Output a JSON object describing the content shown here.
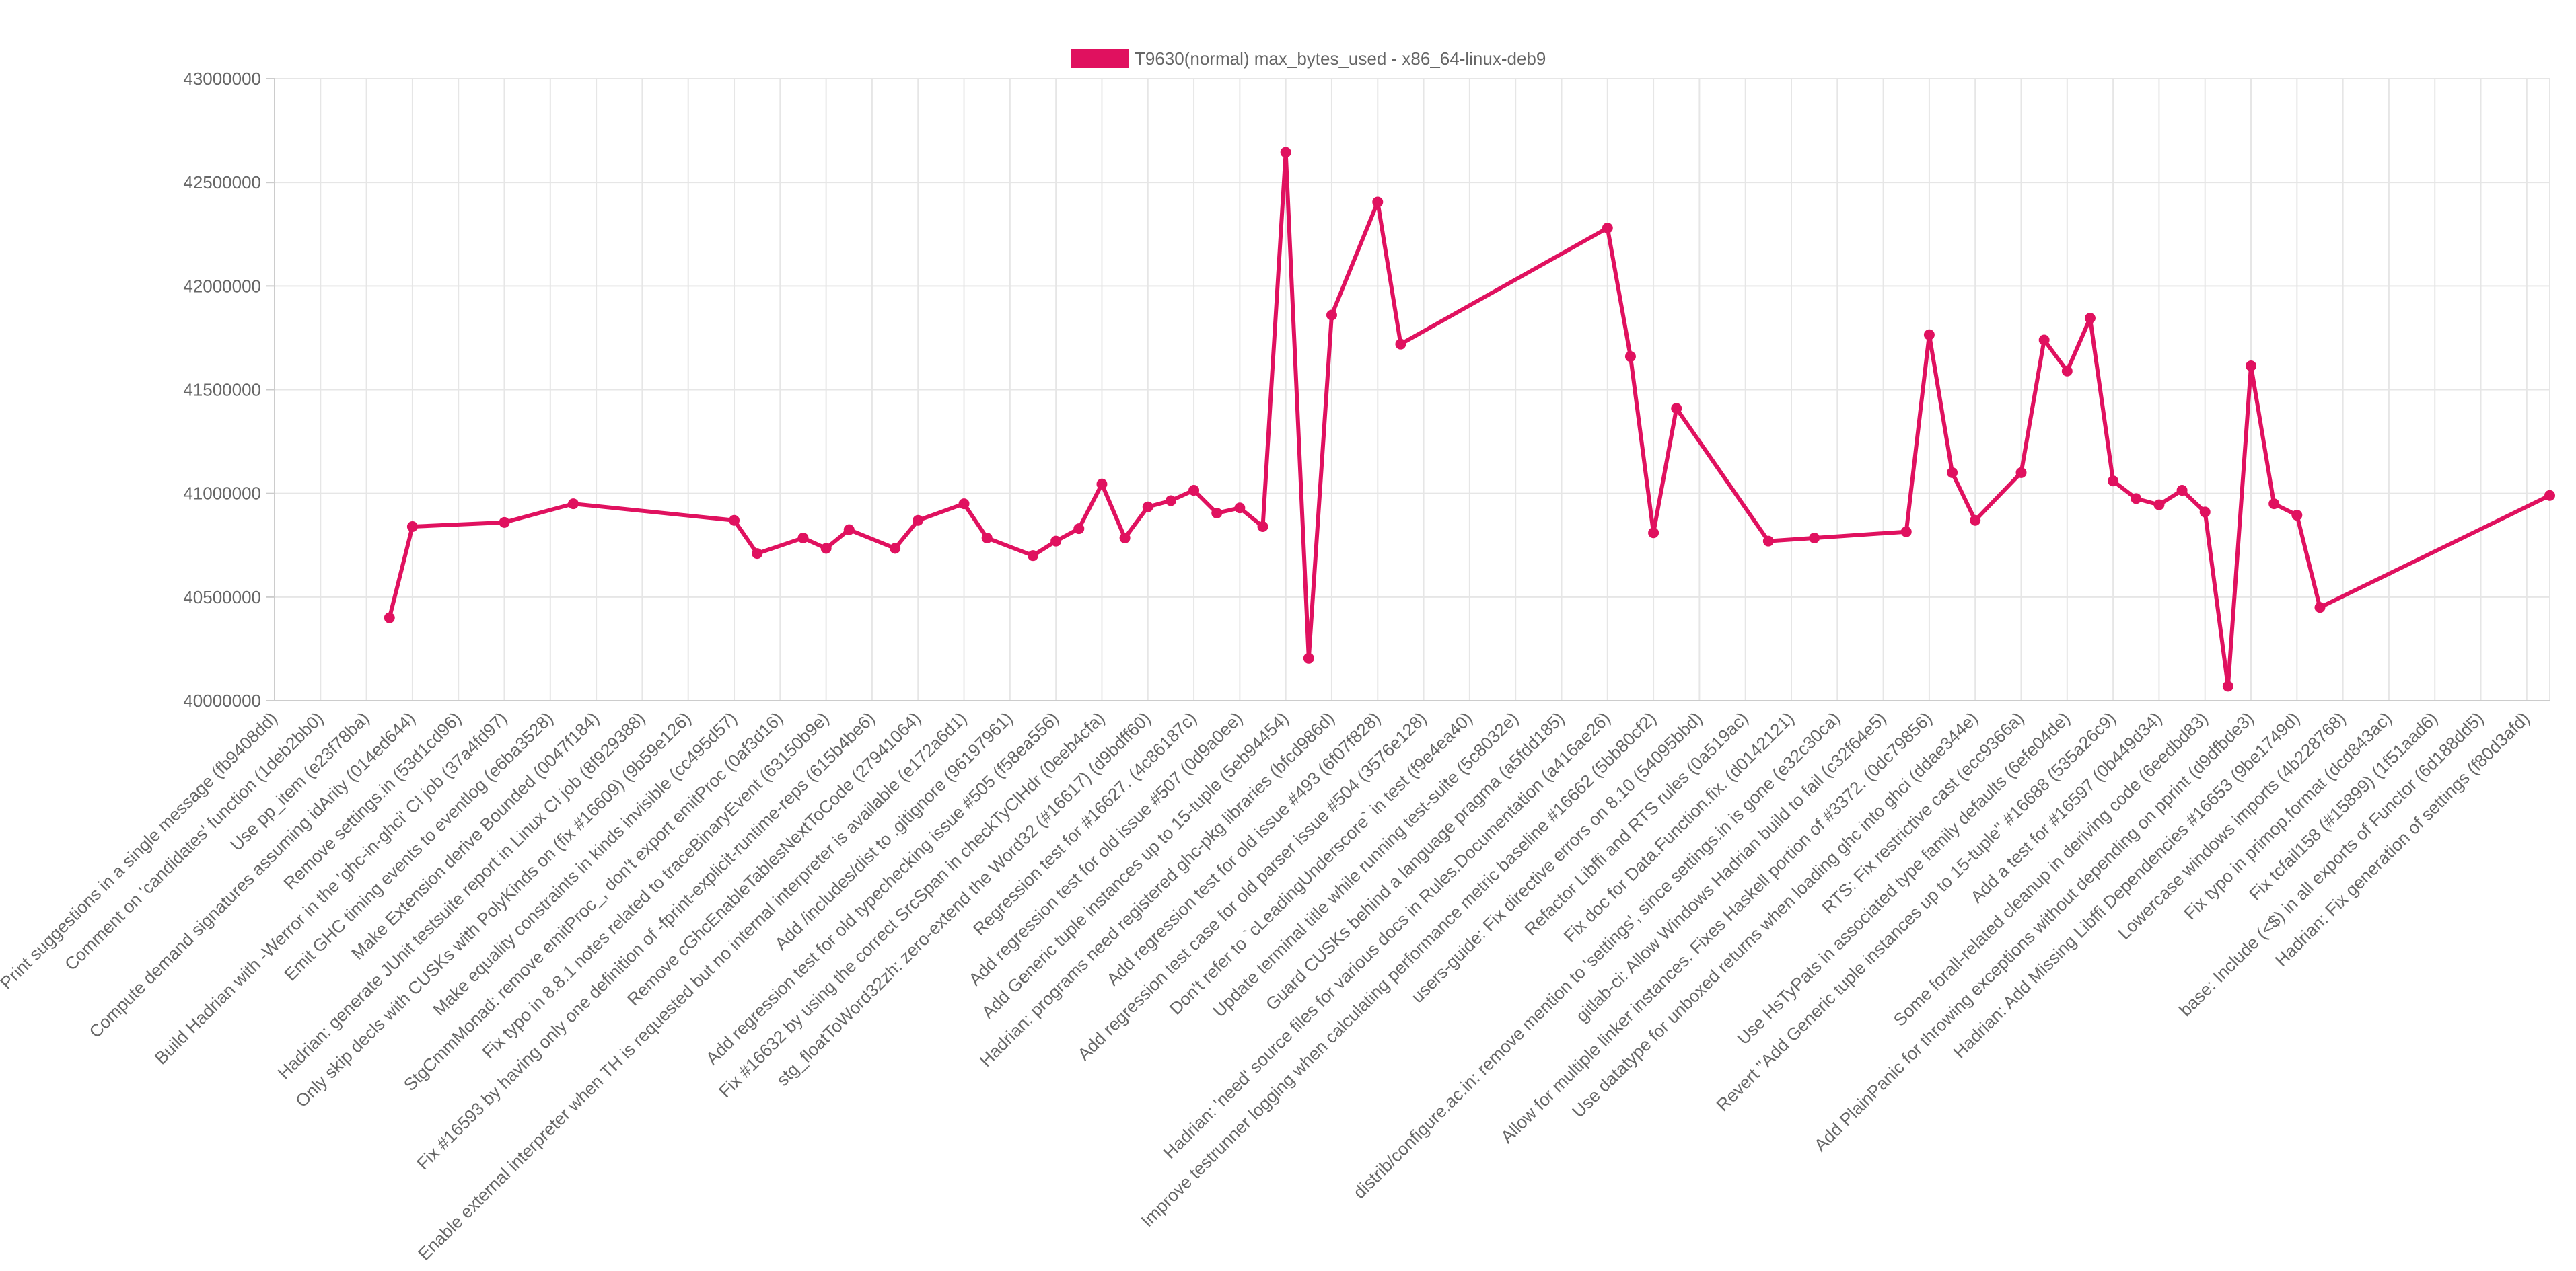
{
  "chart_data": {
    "type": "line",
    "categories": [
      "Print suggestions in a single message (fb9408dd)",
      null,
      "Comment on 'candidates' function (1deb2bb0)",
      null,
      "Use pp_item (e23f78ba)",
      null,
      "Compute demand signatures assuming idArity (014ed644)",
      null,
      "Remove settings.in (53d1cd96)",
      null,
      "Build Hadrian with -Werror in the 'ghc-in-ghci' CI job (37a4fd97)",
      null,
      "Emit GHC timing events to eventlog (e6ba3528)",
      null,
      "Make Extension derive Bounded (0047f184)",
      null,
      "Hadrian: generate JUnit testsuite report in Linux CI job (8f929388)",
      null,
      "Only skip decls with CUSKs with PolyKinds on (fix #16609) (9b59e126)",
      null,
      "Make equality constraints in kinds invisible (cc495d57)",
      null,
      "StgCmmMonad: remove emitProc_, don't export emitProc (0af3d16)",
      null,
      "Fix typo in 8.8.1 notes related to traceBinaryEvent (63150b9e)",
      null,
      "Fix #16593 by having only one definition of -fprint-explicit-runtime-reps (615b4be6)",
      null,
      "Remove cGhcEnableTablesNextToCode (27941064)",
      null,
      "Enable external interpreter when TH is requested but no internal interpreter is available (e172a6d1)",
      null,
      "Add /includes/dist to .gitignore (96197961)",
      null,
      "Add regression test for old typechecking issue #505 (f58ea556)",
      null,
      "Fix #16632 by using the correct SrcSpan in checkTyClHdr (0eeb4cfa)",
      null,
      "stg_floatToWord32zh: zero-extend the Word32 (#16617) (d9bdff60)",
      null,
      "Regression test for #16627. (4c86187c)",
      null,
      "Add regression test for old issue #507 (0d9a0ee)",
      null,
      "Add Generic tuple instances up to 15-tuple (5eb94454)",
      null,
      "Hadrian: programs need registered ghc-pkg libraries (bfcd986d)",
      null,
      "Add regression test for old issue #493 (6f07f828)",
      null,
      "Add regression test case for old parser issue #504 (3576e128)",
      null,
      "Don't refer to `cLeadingUnderscore` in test (f9e4ea40)",
      null,
      "Update terminal title while running test-suite (5c8032e)",
      null,
      "Guard CUSKs behind a language pragma (a5fdd185)",
      null,
      "Hadrian: 'need' source files for various docs in Rules.Documentation (a416ae26)",
      null,
      "Improve testrunner logging when calculating performance metric baseline #16662 (5bb80cf2)",
      null,
      "users-guide: Fix directive errors on 8.10 (54095bbd)",
      null,
      "Refactor Libffi and RTS rules (0a519ac)",
      null,
      "Fix doc for Data.Function.fix. (d0142121)",
      null,
      "distrib/configure.ac.in: remove mention to 'settings', since settings.in is gone (e32c30ca)",
      null,
      "gitlab-ci: Allow Windows Hadrian build to fail (c32f64e5)",
      null,
      "Allow for multiple linker instances. Fixes Haskell portion of #3372. (0dc79856)",
      null,
      "Use datatype for unboxed returns when loading ghc into ghci (ddae344e)",
      null,
      "RTS: Fix restrictive cast (ecc9366a)",
      null,
      "Use HsTyPats in associated type family defaults (6efe04de)",
      null,
      "Revert \"Add Generic tuple instances up to 15-tuple\" #16688 (535a26c9)",
      null,
      "Add a test for #16597 (0b449d34)",
      null,
      "Some forall-related cleanup in deriving code (6eedbd83)",
      null,
      "Add PlainPanic for throwing exceptions without depending on pprint (d9dfbde3)",
      null,
      "Hadrian: Add Missing Libffi Dependencies #16653 (9be1749d)",
      null,
      "Lowercase windows imports (4b228768)",
      null,
      "Fix typo in primop.format (dcd843ac)",
      null,
      "Fix tcfail158 (#15899) (1f51aad6)",
      null,
      "base: Include (<$) in all exports of Functor (6d188dd5)",
      null,
      "Hadrian: Fix generation of settings (f80d3afd)",
      null
    ],
    "series": [
      {
        "name": "T9630(normal) max_bytes_used - x86_64-linux-deb9",
        "color": "#e0115f",
        "values": [
          null,
          null,
          null,
          null,
          null,
          40400000,
          40840000,
          null,
          null,
          null,
          40860000,
          null,
          null,
          40950000,
          null,
          null,
          null,
          null,
          null,
          null,
          40870000,
          40710000,
          null,
          40785000,
          40735000,
          40825000,
          null,
          40735000,
          40870000,
          null,
          40950000,
          40785000,
          null,
          40700000,
          40770000,
          40830000,
          41045000,
          40785000,
          40935000,
          40965000,
          41015000,
          40905000,
          40930000,
          40840000,
          42645000,
          40205000,
          41860000,
          null,
          42405000,
          41720000,
          null,
          null,
          null,
          null,
          null,
          null,
          null,
          null,
          42280000,
          41660000,
          40810000,
          41410000,
          null,
          null,
          null,
          40770000,
          null,
          40785000,
          null,
          null,
          null,
          40815000,
          41765000,
          41100000,
          40870000,
          null,
          41100000,
          41740000,
          41590000,
          41845000,
          41060000,
          40975000,
          40945000,
          41015000,
          40910000,
          40070000,
          41615000,
          40950000,
          40895000,
          40450000,
          null,
          null,
          null,
          null,
          null,
          null,
          null,
          null,
          null,
          40990000
        ]
      }
    ],
    "ylim": [
      40000000,
      43000000
    ],
    "yticks": [
      40000000,
      40500000,
      41000000,
      41500000,
      42000000,
      42500000,
      43000000
    ],
    "grid": true,
    "span_gaps": true,
    "legend": "top"
  }
}
